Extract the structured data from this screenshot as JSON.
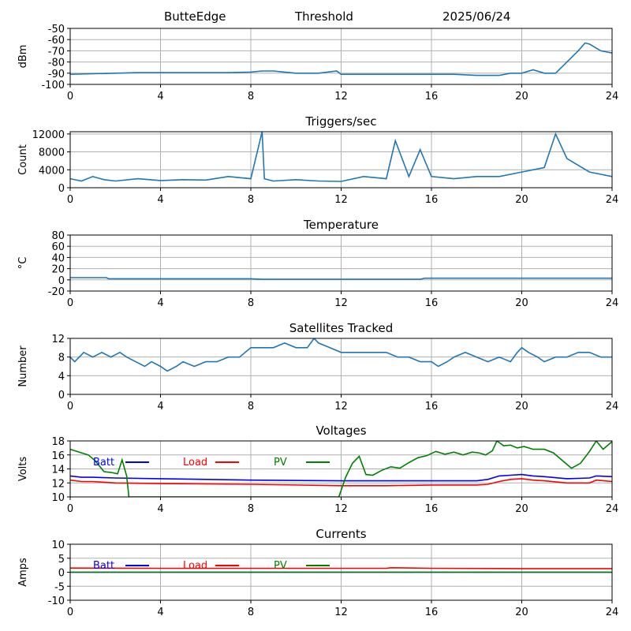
{
  "header": {
    "station": "ButteEdge",
    "mode": "Threshold",
    "date": "2025/06/24"
  },
  "colors": {
    "series": "#1f77b4",
    "batt": "#0000ff",
    "load": "#ff0000",
    "pv": "#008000",
    "grid": "#b0b0b0"
  },
  "chart_data": [
    {
      "type": "line",
      "title": "",
      "ylabel": "dBm",
      "xlim": [
        0,
        24
      ],
      "ylim": [
        -100,
        -50
      ],
      "xticks": [
        0,
        4,
        8,
        12,
        16,
        20,
        24
      ],
      "yticks": [
        -100,
        -90,
        -80,
        -70,
        -60,
        -50
      ],
      "grid": true,
      "series": [
        {
          "x": [
            0,
            1,
            2,
            3,
            4,
            5,
            6,
            7,
            8,
            8.5,
            9,
            9.5,
            10,
            11,
            11.8,
            12,
            13,
            14,
            15,
            16,
            17,
            18,
            19,
            19.5,
            20,
            20.5,
            21,
            21.5,
            22,
            22.5,
            22.8,
            23,
            23.5,
            24
          ],
          "y": [
            -91,
            -90.5,
            -90,
            -89.5,
            -89.5,
            -89.5,
            -89.5,
            -89.5,
            -89,
            -88,
            -88,
            -89,
            -90,
            -90,
            -88,
            -91,
            -91,
            -91,
            -91,
            -91,
            -91,
            -92,
            -92,
            -90,
            -90,
            -87,
            -90,
            -90,
            -80,
            -70,
            -63,
            -64,
            -70,
            -72
          ]
        }
      ]
    },
    {
      "type": "line",
      "title": "Triggers/sec",
      "ylabel": "Count",
      "xlim": [
        0,
        24
      ],
      "ylim": [
        0,
        12500
      ],
      "xticks": [
        0,
        4,
        8,
        12,
        16,
        20,
        24
      ],
      "yticks": [
        0,
        4000,
        8000,
        12000
      ],
      "grid": true,
      "series": [
        {
          "x": [
            0,
            0.5,
            1,
            1.5,
            2,
            3,
            4,
            5,
            6,
            7,
            8,
            8.5,
            8.6,
            9,
            10,
            11,
            12,
            13,
            14,
            14.4,
            15,
            15.5,
            16,
            17,
            18,
            19,
            20,
            21,
            21.5,
            22,
            22.5,
            23,
            24
          ],
          "y": [
            2000,
            1500,
            2500,
            1800,
            1500,
            2000,
            1600,
            1800,
            1700,
            2500,
            2000,
            12500,
            2000,
            1500,
            1800,
            1500,
            1400,
            2500,
            2000,
            10500,
            2500,
            8500,
            2500,
            2000,
            2500,
            2500,
            3500,
            4500,
            12000,
            6500,
            5000,
            3500,
            2500
          ]
        }
      ]
    },
    {
      "type": "line",
      "title": "Temperature",
      "ylabel": "°C",
      "xlim": [
        0,
        24
      ],
      "ylim": [
        -20,
        80
      ],
      "xticks": [
        0,
        4,
        8,
        12,
        16,
        20,
        24
      ],
      "yticks": [
        -20,
        0,
        20,
        40,
        60,
        80
      ],
      "grid": true,
      "series": [
        {
          "x": [
            0,
            1.6,
            1.7,
            8,
            8.5,
            12,
            15.5,
            15.7,
            24
          ],
          "y": [
            4,
            4,
            2,
            2,
            1,
            1,
            1,
            3,
            3
          ]
        }
      ]
    },
    {
      "type": "line",
      "title": "Satellites Tracked",
      "ylabel": "Number",
      "xlim": [
        0,
        24
      ],
      "ylim": [
        0,
        12
      ],
      "xticks": [
        0,
        4,
        8,
        12,
        16,
        20,
        24
      ],
      "yticks": [
        0,
        4,
        8,
        12
      ],
      "grid": true,
      "series": [
        {
          "x": [
            0,
            0.2,
            0.4,
            0.6,
            1,
            1.4,
            1.8,
            2.2,
            2.5,
            2.9,
            3.3,
            3.6,
            4,
            4.3,
            4.7,
            5,
            5.5,
            6,
            6.5,
            7,
            7.5,
            8,
            8.5,
            9,
            9.5,
            10,
            10.5,
            10.8,
            11,
            11.5,
            12,
            12.5,
            13,
            13.5,
            14,
            14.5,
            15,
            15.5,
            16,
            16.3,
            16.7,
            17,
            17.5,
            18,
            18.5,
            19,
            19.5,
            19.8,
            20,
            20.3,
            20.7,
            21,
            21.5,
            22,
            22.5,
            23,
            23.5,
            24
          ],
          "y": [
            8,
            7,
            8,
            9,
            8,
            9,
            8,
            9,
            8,
            7,
            6,
            7,
            6,
            5,
            6,
            7,
            6,
            7,
            7,
            8,
            8,
            10,
            10,
            10,
            11,
            10,
            10,
            12,
            11,
            10,
            9,
            9,
            9,
            9,
            9,
            8,
            8,
            7,
            7,
            6,
            7,
            8,
            9,
            8,
            7,
            8,
            7,
            9,
            10,
            9,
            8,
            7,
            8,
            8,
            9,
            9,
            8,
            8
          ]
        }
      ]
    },
    {
      "type": "line",
      "title": "Voltages",
      "ylabel": "Volts",
      "xlim": [
        0,
        24
      ],
      "ylim": [
        10,
        18
      ],
      "xticks": [
        0,
        4,
        8,
        12,
        16,
        20,
        24
      ],
      "yticks": [
        10,
        12,
        14,
        16,
        18
      ],
      "grid": true,
      "legend": "top-left",
      "series": [
        {
          "name": "Batt",
          "x": [
            0,
            0.5,
            1,
            2,
            4,
            8,
            12,
            14,
            16,
            18,
            18.5,
            19,
            19.5,
            20,
            20.5,
            21,
            22,
            23,
            23.3,
            24
          ],
          "y": [
            13,
            12.8,
            12.8,
            12.7,
            12.6,
            12.4,
            12.3,
            12.3,
            12.3,
            12.3,
            12.5,
            13,
            13.1,
            13.2,
            13,
            12.9,
            12.6,
            12.7,
            13,
            12.9
          ]
        },
        {
          "name": "Load",
          "x": [
            0,
            0.5,
            1,
            2,
            4,
            8,
            12,
            14,
            16,
            18,
            18.5,
            19,
            19.5,
            20,
            20.5,
            21,
            22,
            23,
            23.3,
            24
          ],
          "y": [
            12.4,
            12.2,
            12.2,
            12,
            11.9,
            11.8,
            11.6,
            11.6,
            11.7,
            11.7,
            11.8,
            12.2,
            12.5,
            12.6,
            12.4,
            12.3,
            12,
            12,
            12.4,
            12.2
          ]
        },
        {
          "name": "PV",
          "x": [
            0,
            0.5,
            0.8,
            1.1,
            1.5,
            1.8,
            2.1,
            2.3,
            2.5,
            2.6,
            11.9,
            12.2,
            12.5,
            12.8,
            13.1,
            13.4,
            13.8,
            14.2,
            14.6,
            15,
            15.4,
            15.8,
            16.2,
            16.6,
            17,
            17.4,
            17.8,
            18.1,
            18.4,
            18.7,
            18.9,
            19.2,
            19.5,
            19.8,
            20.1,
            20.5,
            21,
            21.4,
            21.8,
            22.2,
            22.6,
            23,
            23.3,
            23.6,
            24
          ],
          "y": [
            16.8,
            16.3,
            16,
            15.2,
            13.6,
            13.5,
            13.3,
            15.3,
            13,
            10,
            10,
            12.8,
            14.8,
            15.8,
            13.2,
            13.1,
            13.8,
            14.3,
            14.1,
            14.9,
            15.6,
            15.9,
            16.5,
            16.1,
            16.4,
            16,
            16.4,
            16.3,
            16,
            16.6,
            18,
            17.3,
            17.4,
            17,
            17.2,
            16.8,
            16.8,
            16.3,
            15.2,
            14.1,
            14.8,
            16.5,
            18,
            16.8,
            17.9
          ]
        }
      ],
      "legend_labels": [
        "Batt",
        "Load",
        "PV"
      ]
    },
    {
      "type": "line",
      "title": "Currents",
      "ylabel": "Amps",
      "xlim": [
        0,
        24
      ],
      "ylim": [
        -10,
        10
      ],
      "xticks": [
        0,
        4,
        8,
        12,
        16,
        20,
        24
      ],
      "yticks": [
        -10,
        -5,
        0,
        5,
        10
      ],
      "grid": true,
      "legend": "top-left",
      "series": [
        {
          "name": "Batt",
          "x": [
            0,
            24
          ],
          "y": [
            0,
            0
          ]
        },
        {
          "name": "Load",
          "x": [
            0,
            4,
            8,
            12,
            14,
            14.2,
            16,
            20,
            24
          ],
          "y": [
            1.5,
            1.4,
            1.4,
            1.4,
            1.4,
            1.6,
            1.4,
            1.3,
            1.3
          ]
        },
        {
          "name": "PV",
          "x": [
            0,
            24
          ],
          "y": [
            0,
            0
          ]
        }
      ],
      "legend_labels": [
        "Batt",
        "Load",
        "PV"
      ]
    }
  ]
}
